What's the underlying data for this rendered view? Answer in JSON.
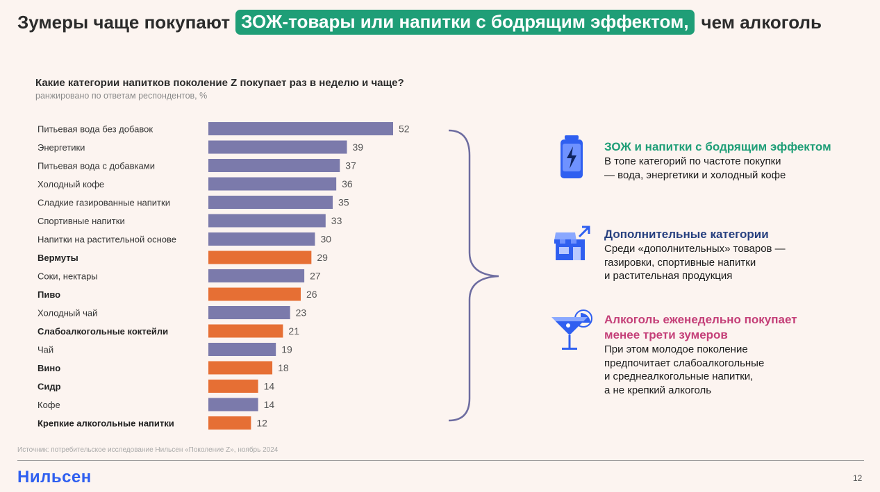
{
  "title": {
    "before": "Зумеры чаще покупают",
    "highlight": "ЗОЖ-товары или напитки с бодрящим эффектом,",
    "after": "чем алкоголь"
  },
  "chart_data": {
    "type": "bar",
    "orientation": "horizontal",
    "title": "Какие категории напитков поколение Z покупает раз в неделю и чаще?",
    "subtitle": "ранжировано по ответам респондентов, %",
    "categories": [
      "Питьевая вода без добавок",
      "Энергетики",
      "Питьевая вода с добавками",
      "Холодный кофе",
      "Сладкие газированные напитки",
      "Спортивные напитки",
      "Напитки на растительной основе",
      "Вермуты",
      "Соки, нектары",
      "Пиво",
      "Холодный чай",
      "Слабоалкогольные коктейли",
      "Чай",
      "Вино",
      "Сидр",
      "Кофе",
      "Крепкие алкогольные напитки"
    ],
    "values": [
      52,
      39,
      37,
      36,
      35,
      33,
      30,
      29,
      27,
      26,
      23,
      21,
      19,
      18,
      14,
      14,
      12
    ],
    "alcohol": [
      false,
      false,
      false,
      false,
      false,
      false,
      false,
      true,
      false,
      true,
      false,
      true,
      false,
      true,
      true,
      false,
      true
    ],
    "colors": {
      "non_alcohol": "#7b7aab",
      "alcohol": "#e66f34"
    },
    "xlim": [
      0,
      52
    ],
    "grid": false,
    "legend": "none"
  },
  "info": [
    {
      "heading": "ЗОЖ и напитки с бодрящим эффектом",
      "text": "В топе категорий по частоте покупки\n— вода, энергетики и холодный кофе",
      "icon": "energy-can-icon",
      "color": "#1f9e77"
    },
    {
      "heading": "Дополнительные категории",
      "text": "Среди «дополнительных» товаров —\nгазировки, спортивные напитки\nи растительная продукция",
      "icon": "store-icon",
      "color": "#27407f"
    },
    {
      "heading": "Алкоголь еженедельно покупает менее трети зумеров",
      "text": "При этом молодое поколение\nпредпочитает слабоалкогольные\nи среднеалкогольные напитки,\nа не крепкий алкоголь",
      "icon": "cocktail-icon",
      "color": "#c43f78"
    }
  ],
  "footer": {
    "source": "Источник: потребительское исследование Нильсен «Поколение Z», ноябрь 2024",
    "logo": "Нильсен",
    "page": "12"
  }
}
